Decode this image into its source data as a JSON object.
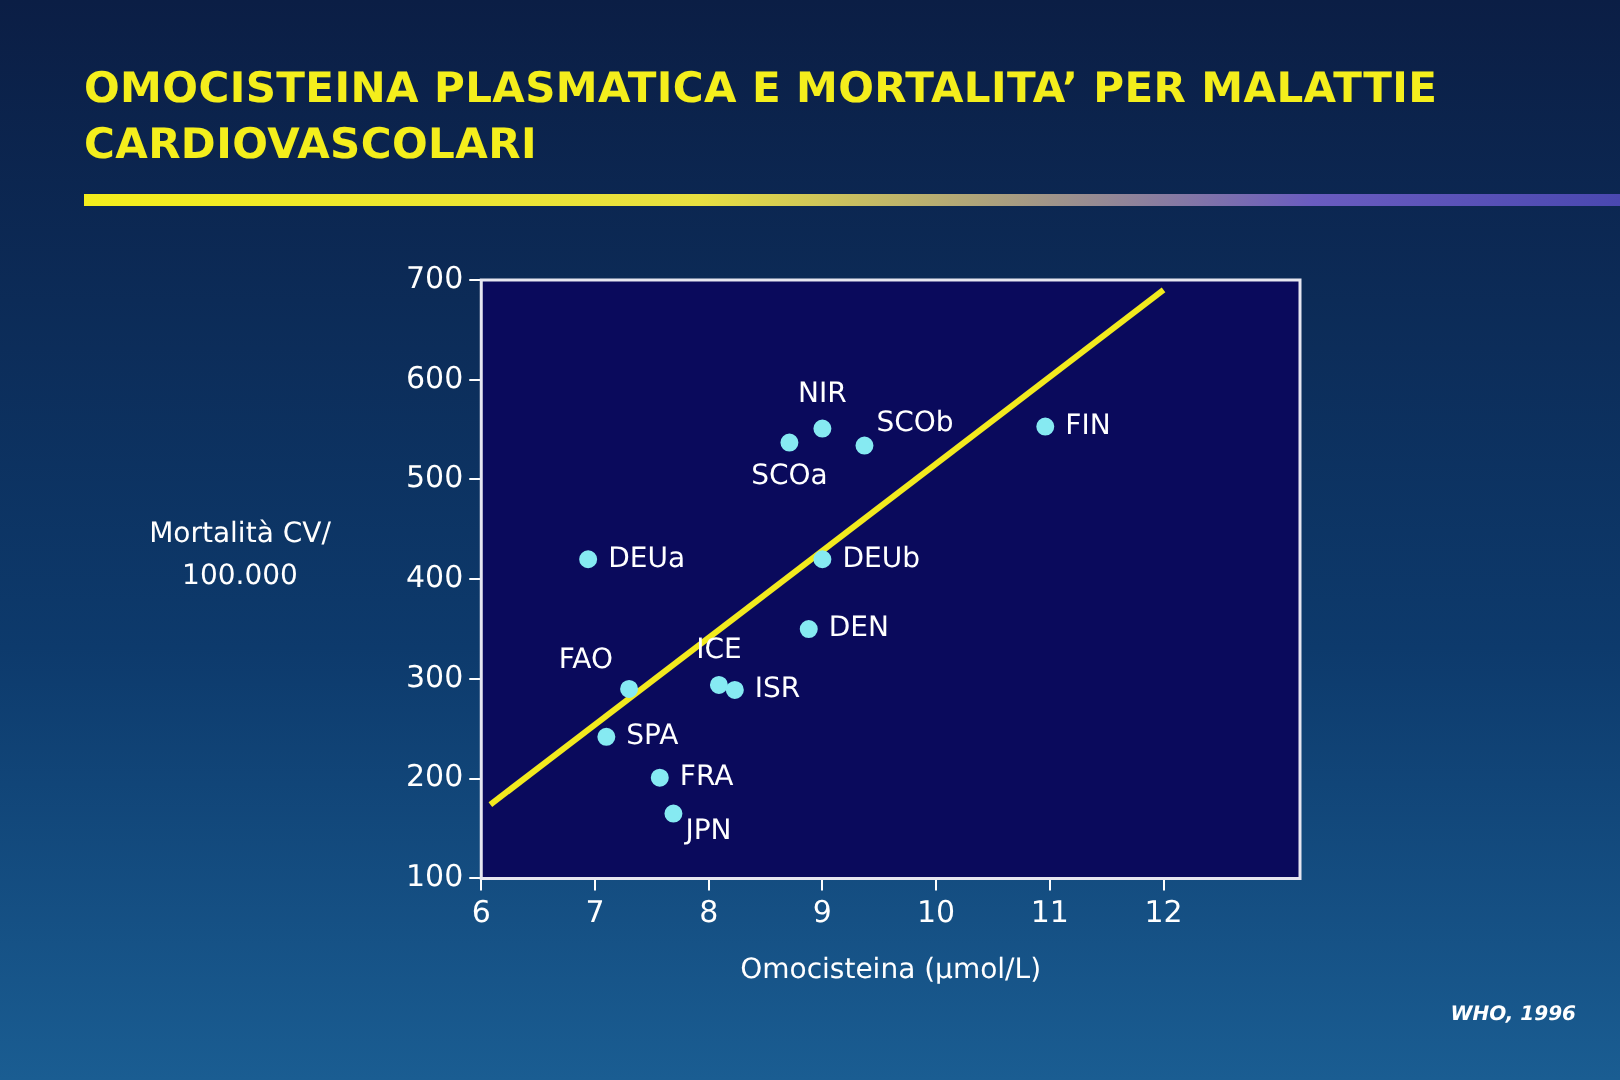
{
  "chart_data": {
    "type": "scatter",
    "title": "OMOCISTEINA PLASMATICA E MORTALITA’ PER MALATTIE CARDIOVASCOLARI",
    "xlabel": "Omocisteina (μmol/L)",
    "ylabel": "Mortalità CV/ 100.000",
    "xlim": [
      6,
      13.2
    ],
    "ylim": [
      100,
      700
    ],
    "xticks": [
      6,
      7,
      8,
      9,
      10,
      11,
      12
    ],
    "yticks": [
      100,
      200,
      300,
      400,
      500,
      600,
      700
    ],
    "grid": false,
    "legend": false,
    "series": [
      {
        "color": "#86eaf2",
        "marker": "circle",
        "x": [
          9.0,
          8.71,
          9.37,
          10.96,
          6.94,
          9.0,
          8.88,
          8.09,
          8.23,
          7.3,
          7.1,
          7.57,
          7.69
        ],
        "values": [
          551,
          537,
          534,
          553,
          420,
          420,
          350,
          294,
          289,
          290,
          242,
          201,
          165
        ]
      },
      {
        "type": "line",
        "marker": "none",
        "color": "#f2ea1e",
        "x": [
          6.08,
          12
        ],
        "values": [
          174,
          690
        ]
      }
    ],
    "annotations": [
      {
        "text": "NIR",
        "x": 9.0,
        "y": 551
      },
      {
        "text": "SCOa",
        "x": 8.71,
        "y": 537
      },
      {
        "text": "SCOb",
        "x": 9.37,
        "y": 534
      },
      {
        "text": "FIN",
        "x": 10.96,
        "y": 553
      },
      {
        "text": "DEUa",
        "x": 6.94,
        "y": 420
      },
      {
        "text": "DEUb",
        "x": 9.0,
        "y": 420
      },
      {
        "text": "DEN",
        "x": 8.88,
        "y": 350
      },
      {
        "text": "ICE",
        "x": 8.09,
        "y": 294
      },
      {
        "text": "ISR",
        "x": 8.23,
        "y": 289
      },
      {
        "text": "FAO",
        "x": 7.3,
        "y": 290
      },
      {
        "text": "SPA",
        "x": 7.1,
        "y": 242
      },
      {
        "text": "FRA",
        "x": 7.57,
        "y": 201
      },
      {
        "text": "JPN",
        "x": 7.69,
        "y": 165
      },
      "WHO, 1996"
    ]
  }
}
